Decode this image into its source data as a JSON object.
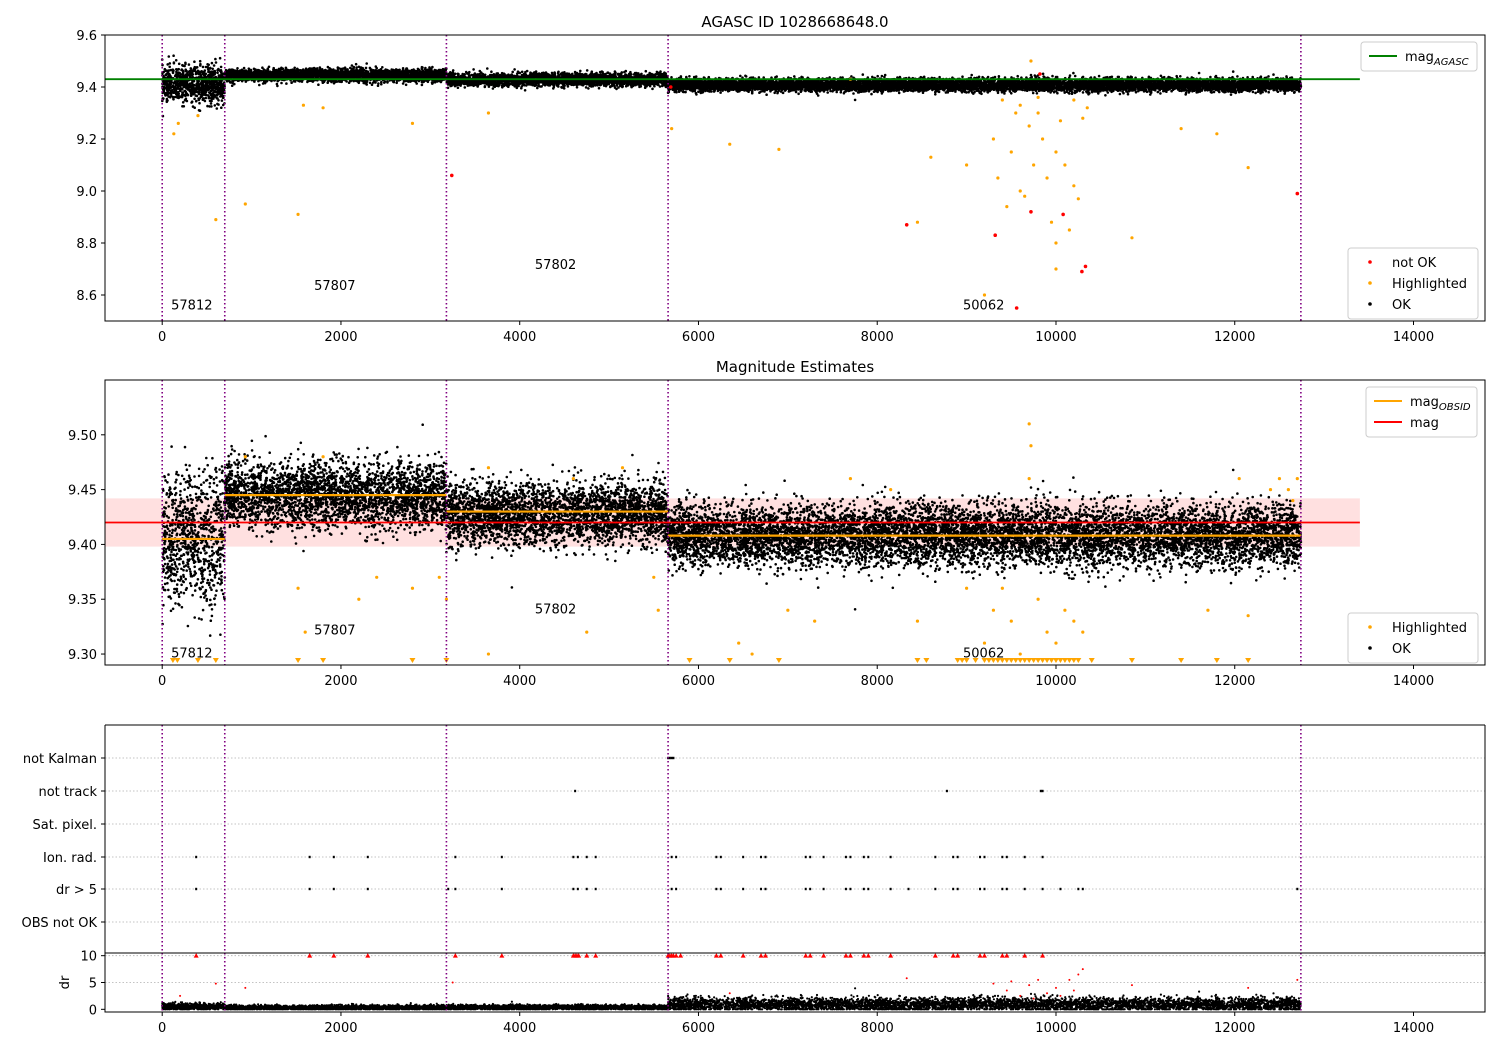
{
  "colors": {
    "ok": "#000000",
    "highlighted": "#ffa500",
    "not_ok": "#ff0000",
    "mag_agasc": "#008000",
    "mag_obsid": "#ffa500",
    "mag": "#ff0000",
    "band": "#ffcccc",
    "obsid_boundary": "#800080",
    "grid": "#b0b0b0"
  },
  "chart_data": [
    {
      "type": "scatter",
      "title": "AGASC ID 1028668648.0",
      "xlim": [
        -640,
        14800
      ],
      "ylim": [
        8.5,
        9.6
      ],
      "xticks": [
        0,
        2000,
        4000,
        6000,
        8000,
        10000,
        12000,
        14000
      ],
      "xtick_labels": [
        "0",
        "2000",
        "4000",
        "6000",
        "8000",
        "10000",
        "12000",
        "14000"
      ],
      "yticks": [
        8.6,
        8.8,
        9.0,
        9.2,
        9.4,
        9.6
      ],
      "ytick_labels": [
        "8.6",
        "8.8",
        "9.0",
        "9.2",
        "9.4",
        "9.6"
      ],
      "obsid_boundaries": [
        0,
        700,
        3180,
        5660,
        12740
      ],
      "obsids": [
        {
          "label": "57812",
          "x": 100,
          "y": 8.545
        },
        {
          "label": "57807",
          "x": 1700,
          "y": 8.62
        },
        {
          "label": "57802",
          "x": 4170,
          "y": 8.7
        },
        {
          "label": "50062",
          "x": 8960,
          "y": 8.545
        }
      ],
      "mag_agasc": {
        "y": 9.43,
        "x": [
          -640,
          13400
        ]
      },
      "segments": [
        {
          "x": [
            0,
            700
          ],
          "mean": 9.41,
          "spread": 0.035
        },
        {
          "x": [
            700,
            3180
          ],
          "mean": 9.445,
          "spread": 0.012
        },
        {
          "x": [
            3180,
            5660
          ],
          "mean": 9.428,
          "spread": 0.012
        },
        {
          "x": [
            5660,
            12740
          ],
          "mean": 9.408,
          "spread": 0.012
        }
      ],
      "highlighted_points": [
        [
          130,
          9.22
        ],
        [
          180,
          9.26
        ],
        [
          400,
          9.29
        ],
        [
          600,
          8.89
        ],
        [
          930,
          8.95
        ],
        [
          1520,
          8.91
        ],
        [
          1580,
          9.33
        ],
        [
          1800,
          9.32
        ],
        [
          2800,
          9.26
        ],
        [
          3650,
          9.3
        ],
        [
          5700,
          9.24
        ],
        [
          6350,
          9.18
        ],
        [
          6900,
          9.16
        ],
        [
          7700,
          9.43
        ],
        [
          8600,
          9.13
        ],
        [
          8450,
          8.88
        ],
        [
          9000,
          9.1
        ],
        [
          9200,
          8.6
        ],
        [
          9300,
          9.2
        ],
        [
          9350,
          9.05
        ],
        [
          9450,
          8.94
        ],
        [
          9500,
          9.15
        ],
        [
          9550,
          9.3
        ],
        [
          9600,
          9.0
        ],
        [
          9650,
          8.98
        ],
        [
          9700,
          9.25
        ],
        [
          9720,
          9.5
        ],
        [
          9750,
          9.1
        ],
        [
          9800,
          9.3
        ],
        [
          9850,
          9.2
        ],
        [
          9900,
          9.05
        ],
        [
          9950,
          8.88
        ],
        [
          10000,
          9.15
        ],
        [
          10050,
          9.27
        ],
        [
          10100,
          9.1
        ],
        [
          10150,
          8.85
        ],
        [
          10200,
          9.02
        ],
        [
          10250,
          8.97
        ],
        [
          10300,
          9.28
        ],
        [
          10350,
          9.32
        ],
        [
          10000,
          8.7
        ],
        [
          10000,
          8.8
        ],
        [
          10850,
          8.82
        ],
        [
          11400,
          9.24
        ],
        [
          11800,
          9.22
        ],
        [
          12150,
          9.09
        ],
        [
          9800,
          9.36
        ],
        [
          9600,
          9.33
        ],
        [
          9400,
          9.35
        ],
        [
          10200,
          9.35
        ]
      ],
      "not_ok_points": [
        [
          3240,
          9.06
        ],
        [
          8330,
          8.87
        ],
        [
          9320,
          8.83
        ],
        [
          9560,
          8.55
        ],
        [
          9720,
          8.92
        ],
        [
          9820,
          9.45
        ],
        [
          10080,
          8.91
        ],
        [
          10290,
          8.69
        ],
        [
          10330,
          8.71
        ],
        [
          12700,
          8.99
        ],
        [
          5690,
          9.4
        ]
      ],
      "legend": [
        {
          "label": "mag",
          "sub": "AGASC",
          "marker": "line",
          "colorKey": "mag_agasc"
        }
      ],
      "legend2": [
        {
          "label": "not OK",
          "marker": "dot",
          "colorKey": "not_ok"
        },
        {
          "label": "Highlighted",
          "marker": "dot",
          "colorKey": "highlighted"
        },
        {
          "label": "OK",
          "marker": "dot",
          "colorKey": "ok"
        }
      ]
    },
    {
      "type": "scatter",
      "title": "Magnitude Estimates",
      "xlim": [
        -640,
        14800
      ],
      "ylim": [
        9.29,
        9.55
      ],
      "xticks": [
        0,
        2000,
        4000,
        6000,
        8000,
        10000,
        12000,
        14000
      ],
      "xtick_labels": [
        "0",
        "2000",
        "4000",
        "6000",
        "8000",
        "10000",
        "12000",
        "14000"
      ],
      "yticks": [
        9.3,
        9.35,
        9.4,
        9.45,
        9.5
      ],
      "ytick_labels": [
        "9.30",
        "9.35",
        "9.40",
        "9.45",
        "9.50"
      ],
      "obsid_boundaries": [
        0,
        700,
        3180,
        5660,
        12740
      ],
      "obsids": [
        {
          "label": "57812",
          "x": 100,
          "y": 9.297
        },
        {
          "label": "57807",
          "x": 1700,
          "y": 9.318
        },
        {
          "label": "57802",
          "x": 4170,
          "y": 9.337
        },
        {
          "label": "50062",
          "x": 8960,
          "y": 9.297
        }
      ],
      "mag": {
        "y": 9.42,
        "x": [
          -640,
          13400
        ],
        "band": [
          9.398,
          9.442
        ]
      },
      "mag_obsid": [
        {
          "x": [
            0,
            700
          ],
          "y": 9.405
        },
        {
          "x": [
            700,
            3180
          ],
          "y": 9.445
        },
        {
          "x": [
            3180,
            5660
          ],
          "y": 9.43
        },
        {
          "x": [
            5660,
            12740
          ],
          "y": 9.408
        }
      ],
      "segments": [
        {
          "x": [
            0,
            700
          ],
          "mean": 9.405,
          "spread": 0.03
        },
        {
          "x": [
            700,
            3180
          ],
          "mean": 9.445,
          "spread": 0.015
        },
        {
          "x": [
            3180,
            5660
          ],
          "mean": 9.428,
          "spread": 0.014
        },
        {
          "x": [
            5660,
            12740
          ],
          "mean": 9.408,
          "spread": 0.014
        }
      ],
      "highlighted_points": [
        [
          930,
          9.48
        ],
        [
          1520,
          9.36
        ],
        [
          1600,
          9.32
        ],
        [
          1800,
          9.48
        ],
        [
          2200,
          9.35
        ],
        [
          2400,
          9.37
        ],
        [
          2800,
          9.36
        ],
        [
          3100,
          9.37
        ],
        [
          3180,
          9.35
        ],
        [
          3650,
          9.3
        ],
        [
          3650,
          9.47
        ],
        [
          4600,
          9.46
        ],
        [
          4750,
          9.32
        ],
        [
          5150,
          9.47
        ],
        [
          5500,
          9.37
        ],
        [
          5550,
          9.34
        ],
        [
          6450,
          9.31
        ],
        [
          6600,
          9.3
        ],
        [
          7000,
          9.34
        ],
        [
          7300,
          9.33
        ],
        [
          7700,
          9.46
        ],
        [
          8150,
          9.45
        ],
        [
          8450,
          9.33
        ],
        [
          9000,
          9.36
        ],
        [
          9200,
          9.31
        ],
        [
          9300,
          9.34
        ],
        [
          9400,
          9.36
        ],
        [
          9500,
          9.33
        ],
        [
          9600,
          9.3
        ],
        [
          9700,
          9.51
        ],
        [
          9720,
          9.49
        ],
        [
          9700,
          9.46
        ],
        [
          9800,
          9.35
        ],
        [
          9900,
          9.32
        ],
        [
          10000,
          9.31
        ],
        [
          10100,
          9.34
        ],
        [
          10200,
          9.33
        ],
        [
          10300,
          9.32
        ],
        [
          11700,
          9.34
        ],
        [
          12050,
          9.46
        ],
        [
          12150,
          9.335
        ],
        [
          12400,
          9.45
        ],
        [
          12500,
          9.46
        ],
        [
          12600,
          9.45
        ],
        [
          12700,
          9.46
        ],
        [
          12650,
          9.44
        ]
      ],
      "limit_markers": [
        120,
        170,
        400,
        600,
        1520,
        1800,
        2800,
        3180,
        5900,
        6350,
        6900,
        8450,
        8550,
        8900,
        8950,
        9000,
        9100,
        9200,
        9250,
        9300,
        9350,
        9400,
        9450,
        9500,
        9550,
        9600,
        9650,
        9700,
        9750,
        9800,
        9850,
        9900,
        9950,
        10000,
        10050,
        10100,
        10150,
        10200,
        10250,
        10400,
        10850,
        11400,
        11800,
        12150
      ],
      "legend": [
        {
          "label": "mag",
          "sub": "OBSID",
          "marker": "line",
          "colorKey": "mag_obsid"
        },
        {
          "label": "mag",
          "marker": "line",
          "colorKey": "mag"
        }
      ],
      "legend2": [
        {
          "label": "Highlighted",
          "marker": "dot",
          "colorKey": "highlighted"
        },
        {
          "label": "OK",
          "marker": "dot",
          "colorKey": "ok"
        }
      ]
    },
    {
      "type": "scatter",
      "title": "",
      "xlim": [
        -640,
        14800
      ],
      "flag_rows": [
        "not Kalman",
        "not track",
        "Sat. pixel.",
        "Ion. rad.",
        "dr > 5",
        "OBS not OK"
      ],
      "obsid_boundaries": [
        0,
        700,
        3180,
        5660,
        12740
      ],
      "flags": {
        "not Kalman": [
          5660,
          5680,
          5700,
          5720
        ],
        "not track": [
          4620,
          8780,
          9830,
          9850
        ],
        "Sat. pixel.": [],
        "Ion. rad.": [
          380,
          1650,
          1920,
          2300,
          3280,
          3800,
          4600,
          4650,
          4750,
          4850,
          5700,
          5750,
          6200,
          6250,
          6500,
          6700,
          6750,
          7200,
          7250,
          7400,
          7650,
          7700,
          7850,
          7900,
          8150,
          8650,
          8850,
          8900,
          9150,
          9200,
          9400,
          9450,
          9650,
          9850
        ],
        "dr > 5": [
          380,
          1650,
          1920,
          2300,
          3200,
          3280,
          3800,
          4600,
          4650,
          4750,
          4850,
          5700,
          5750,
          6200,
          6250,
          6500,
          6700,
          6750,
          7200,
          7250,
          7400,
          7650,
          7700,
          7850,
          7900,
          8150,
          8350,
          8650,
          8850,
          8900,
          9150,
          9200,
          9400,
          9450,
          9650,
          9850,
          10050,
          10250,
          10300,
          12700
        ],
        "OBS not OK": []
      }
    },
    {
      "type": "scatter",
      "title": "",
      "ylabel": "dr",
      "xlim": [
        -640,
        14800
      ],
      "ylim": [
        -0.5,
        10.5
      ],
      "xticks": [
        0,
        2000,
        4000,
        6000,
        8000,
        10000,
        12000,
        14000
      ],
      "xtick_labels": [
        "0",
        "2000",
        "4000",
        "6000",
        "8000",
        "10000",
        "12000",
        "14000"
      ],
      "yticks": [
        0,
        5,
        10
      ],
      "ytick_labels": [
        "0",
        "5",
        "10"
      ],
      "obsid_boundaries": [
        0,
        700,
        3180,
        5660,
        12740
      ],
      "capped_markers": [
        380,
        1650,
        1920,
        2300,
        3280,
        3800,
        4600,
        4620,
        4640,
        4660,
        4750,
        4850,
        5660,
        5680,
        5700,
        5720,
        5750,
        5800,
        6200,
        6250,
        6500,
        6700,
        6750,
        7200,
        7250,
        7400,
        7650,
        7700,
        7850,
        7900,
        8150,
        8650,
        8850,
        8900,
        9150,
        9200,
        9400,
        9450,
        9650,
        9850
      ],
      "outliers_red": [
        [
          200,
          2.5
        ],
        [
          600,
          4.8
        ],
        [
          930,
          4.0
        ],
        [
          3250,
          5.0
        ],
        [
          6350,
          3.0
        ],
        [
          8330,
          5.8
        ],
        [
          9300,
          4.8
        ],
        [
          9450,
          3.5
        ],
        [
          9500,
          5.2
        ],
        [
          9600,
          2.5
        ],
        [
          9700,
          4.5
        ],
        [
          9750,
          2.0
        ],
        [
          9800,
          5.5
        ],
        [
          9900,
          3.0
        ],
        [
          10000,
          4.0
        ],
        [
          10050,
          2.5
        ],
        [
          10150,
          5.5
        ],
        [
          10200,
          3.5
        ],
        [
          10250,
          6.5
        ],
        [
          10300,
          7.5
        ],
        [
          10850,
          4.5
        ],
        [
          12150,
          4.0
        ],
        [
          12700,
          5.5
        ]
      ],
      "segments": [
        {
          "x": [
            0,
            700
          ],
          "mean": 0.5,
          "spread": 0.35
        },
        {
          "x": [
            700,
            3180
          ],
          "mean": 0.3,
          "spread": 0.25
        },
        {
          "x": [
            3180,
            5660
          ],
          "mean": 0.35,
          "spread": 0.25
        },
        {
          "x": [
            5660,
            12740
          ],
          "mean": 0.9,
          "spread": 0.7
        }
      ]
    }
  ]
}
